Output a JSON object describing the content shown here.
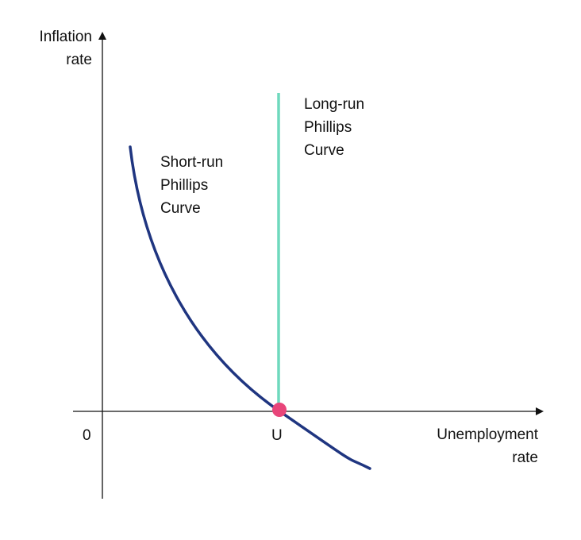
{
  "chart_data": {
    "type": "diagram",
    "y_axis_label": "Inflation\nrate",
    "x_axis_label": "Unemployment\nrate",
    "origin_label": "0",
    "natural_rate_label": "U",
    "curves": [
      {
        "name": "Short-run\nPhillips\nCurve",
        "shape": "downward-sloping convex curve"
      },
      {
        "name": "Long-run\nPhillips\nCurve",
        "shape": "vertical line at U"
      }
    ],
    "intersection": "U"
  },
  "colors": {
    "short_run_curve": "#1f3580",
    "long_run_curve": "#6fd9bd",
    "intersection_point": "#e8457a",
    "axes": "#111111"
  }
}
